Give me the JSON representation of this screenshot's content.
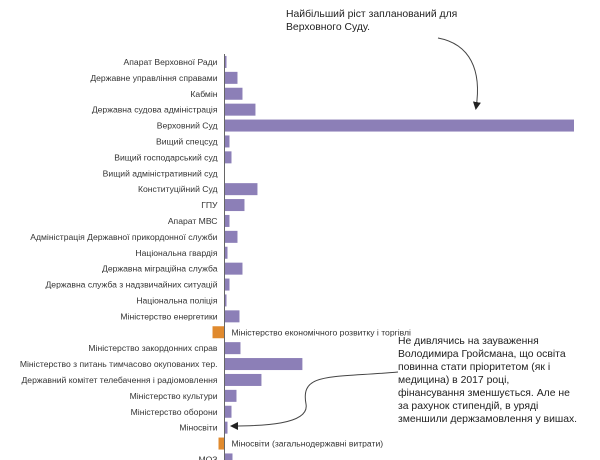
{
  "chart_data": {
    "type": "bar",
    "orientation": "horizontal",
    "title": "",
    "xlabel": "",
    "ylabel": "",
    "categories": [
      "Апарат Верховної Ради",
      "Державне управління справами",
      "Кабмін",
      "Державна судова адміністрація",
      "Верховний Суд",
      "Вищий спецсуд",
      "Вищий господарський суд",
      "Вищий адміністративний суд",
      "Конституційний Суд",
      "ГПУ",
      "Апарат МВС",
      "Адміністрація Державної прикордонної служби",
      "Національна гвардія",
      "Державна міграційна служба",
      "Державна служба з надзвичайних ситуацій",
      "Національна поліція",
      "Міністерство енергетики",
      "Міністерство економічного розвитку і торгівлі",
      "Міністерство закордонних справ",
      "Міністерство з питань тимчасово окупованих тер.",
      "Державний комітет телебачення і радіомовлення",
      "Міністерство культури",
      "Міністерство оборони",
      "Міносвіти",
      "Міносвіти (загальнодержавні витрати)",
      "МОЗ"
    ],
    "values": [
      2,
      13,
      18,
      31,
      350,
      5,
      7,
      0,
      33,
      20,
      5,
      13,
      3,
      18,
      5,
      2,
      15,
      -12,
      16,
      78,
      37,
      12,
      7,
      3,
      -6,
      8
    ],
    "xlim": [
      -15,
      350
    ],
    "grid": false,
    "legend": "none",
    "colors": {
      "positive": "#8c7fb7",
      "negative": "#e08a2e",
      "axis": "#666666"
    }
  },
  "annotations": {
    "top": [
      "Найбільший ріст запланований для",
      "Верховного Суду."
    ],
    "mid": [
      "Не дивлячись на зауваження",
      "Володимира Гройсмана, що освіта",
      "повинна стати пріоритетом (як і",
      "медицина) в 2017 році,",
      "фінансування зменшується. Але не",
      "за рахунок стипендій, в уряді",
      "зменшили держзамовлення у вишах."
    ]
  }
}
